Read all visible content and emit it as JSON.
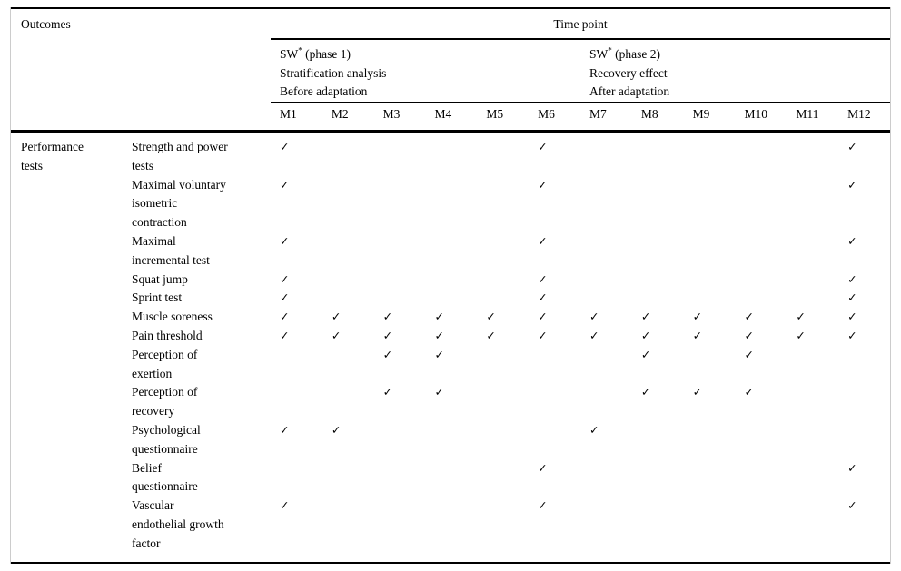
{
  "table": {
    "outcomes_header": "Outcomes",
    "timepoint_header": "Time point",
    "check_glyph": "✓",
    "text_color": "#000000",
    "rule_color": "#000000",
    "frame_color": "#cccccc",
    "columns": [
      "M1",
      "M2",
      "M3",
      "M4",
      "M5",
      "M6",
      "M7",
      "M8",
      "M9",
      "M10",
      "M11",
      "M12"
    ],
    "phase1": {
      "title_prefix": "SW",
      "title_sup": "*",
      "title_suffix": " (phase 1)",
      "line2": "Stratification analysis",
      "line3": "Before adaptation"
    },
    "phase2": {
      "title_prefix": "SW",
      "title_sup": "*",
      "title_suffix": " (phase 2)",
      "line2": "Recovery effect",
      "line3": "After adaptation"
    },
    "group": {
      "label": "Performance\ntests"
    },
    "rows": [
      {
        "label": "Strength and power\ntests",
        "checks": [
          1,
          6,
          12
        ]
      },
      {
        "label": "Maximal voluntary\nisometric\ncontraction",
        "checks": [
          1,
          6,
          12
        ]
      },
      {
        "label": "Maximal\nincremental test",
        "checks": [
          1,
          6,
          12
        ]
      },
      {
        "label": "Squat jump",
        "checks": [
          1,
          6,
          12
        ]
      },
      {
        "label": "Sprint test",
        "checks": [
          1,
          6,
          12
        ]
      },
      {
        "label": "Muscle soreness",
        "checks": [
          1,
          2,
          3,
          4,
          5,
          6,
          7,
          8,
          9,
          10,
          11,
          12
        ]
      },
      {
        "label": "Pain threshold",
        "checks": [
          1,
          2,
          3,
          4,
          5,
          6,
          7,
          8,
          9,
          10,
          11,
          12
        ]
      },
      {
        "label": "Perception of\nexertion",
        "checks": [
          3,
          4,
          8,
          10
        ]
      },
      {
        "label": "Perception of\nrecovery",
        "checks": [
          3,
          4,
          8,
          9,
          10
        ]
      },
      {
        "label": "Psychological\nquestionnaire",
        "checks": [
          1,
          2,
          7
        ]
      },
      {
        "label": "Belief\nquestionnaire",
        "checks": [
          6,
          12
        ]
      },
      {
        "label": "Vascular\nendothelial growth\nfactor",
        "checks": [
          1,
          6,
          12
        ]
      }
    ]
  }
}
